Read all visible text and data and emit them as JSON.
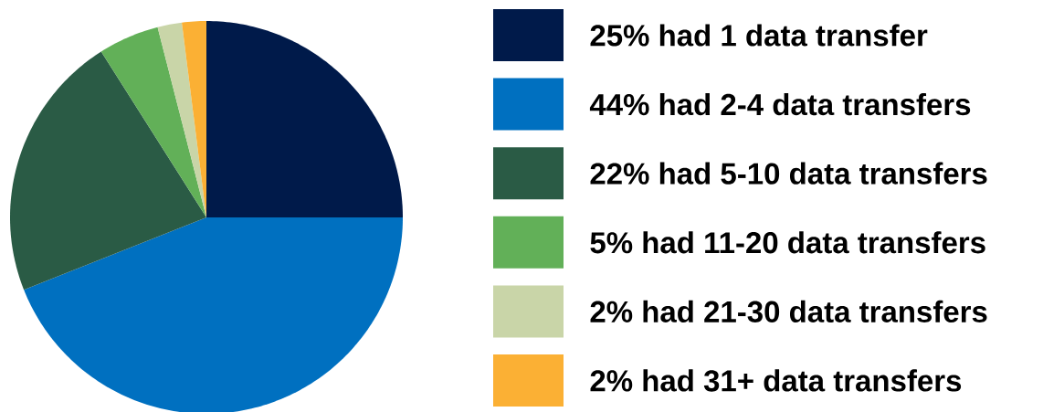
{
  "chart_data": {
    "type": "pie",
    "categories": [
      "25% had 1 data transfer",
      "44% had 2-4 data transfers",
      "22% had 5-10 data transfers",
      "5% had 11-20 data transfers",
      "2% had 21-30 data transfers",
      "2% had 31+ data transfers"
    ],
    "values": [
      25,
      44,
      22,
      5,
      2,
      2
    ],
    "colors": [
      "#001a4a",
      "#0070c0",
      "#2a5b45",
      "#62b058",
      "#c9d5a8",
      "#fbb034"
    ],
    "legend": "right"
  }
}
